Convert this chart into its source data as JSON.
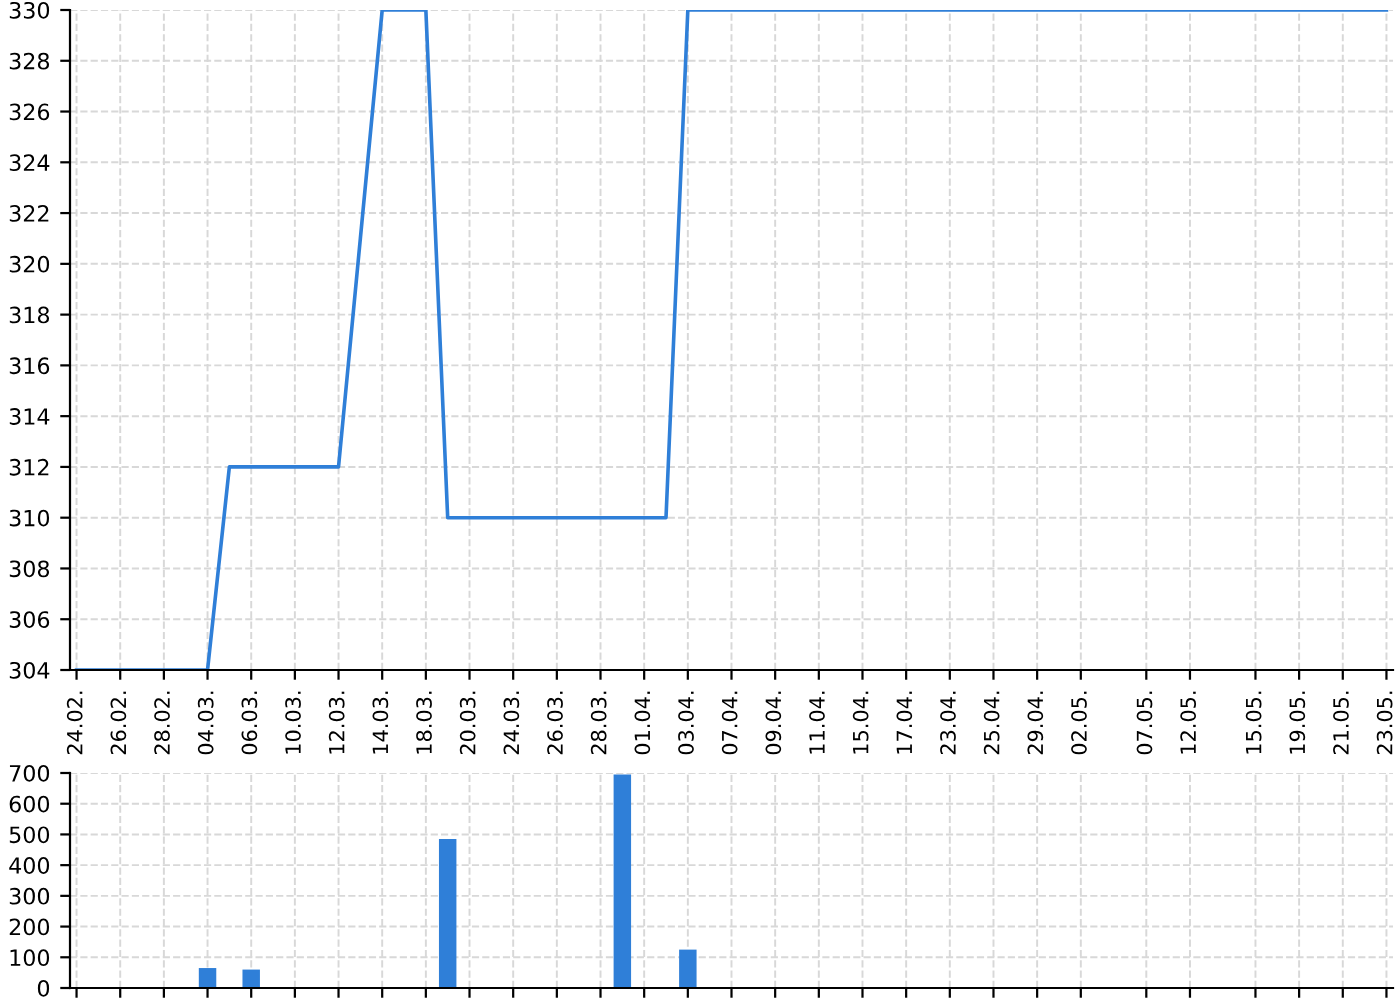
{
  "chart_data": [
    {
      "type": "line",
      "categories": [
        "24.02.",
        null,
        "26.02.",
        null,
        "28.02.",
        null,
        "04.03.",
        null,
        "06.03.",
        null,
        "10.03.",
        null,
        "12.03.",
        null,
        "14.03.",
        null,
        "18.03.",
        null,
        "20.03.",
        null,
        "24.03.",
        null,
        "26.03.",
        null,
        "28.03.",
        null,
        "01.04.",
        null,
        "03.04.",
        null,
        "07.04.",
        null,
        "09.04.",
        null,
        "11.04.",
        null,
        "15.04.",
        null,
        "17.04.",
        null,
        "23.04.",
        null,
        "25.04.",
        null,
        "29.04.",
        null,
        "02.05.",
        null,
        null,
        "07.05.",
        null,
        "12.05.",
        null,
        null,
        "15.05.",
        null,
        "19.05.",
        null,
        "21.05.",
        null,
        "23.05."
      ],
      "series": [
        {
          "color": "#2f7fd8",
          "values": [
            304,
            304,
            304,
            304,
            304,
            304,
            304,
            312,
            312,
            312,
            312,
            312,
            312,
            321,
            330,
            330,
            330,
            310,
            310,
            310,
            310,
            310,
            310,
            310,
            310,
            310,
            310,
            310,
            330,
            330,
            330,
            330,
            330,
            330,
            330,
            330,
            330,
            330,
            330,
            330,
            330,
            330,
            330,
            330,
            330,
            330,
            330,
            330,
            330,
            330,
            330,
            330,
            330,
            330,
            330,
            330,
            330,
            330,
            330,
            330,
            330
          ]
        }
      ],
      "ylim": [
        304,
        330
      ],
      "yticks": [
        304,
        306,
        308,
        310,
        312,
        314,
        316,
        318,
        320,
        322,
        324,
        326,
        328,
        330
      ],
      "grid": true,
      "marker": "none",
      "line_style": "solid"
    },
    {
      "type": "bar",
      "categories": [
        "24.02.",
        null,
        "26.02.",
        null,
        "28.02.",
        null,
        "04.03.",
        null,
        "06.03.",
        null,
        "10.03.",
        null,
        "12.03.",
        null,
        "14.03.",
        null,
        "18.03.",
        null,
        "20.03.",
        null,
        "24.03.",
        null,
        "26.03.",
        null,
        "28.03.",
        null,
        "01.04.",
        null,
        "03.04.",
        null,
        "07.04.",
        null,
        "09.04.",
        null,
        "11.04.",
        null,
        "15.04.",
        null,
        "17.04.",
        null,
        "23.04.",
        null,
        "25.04.",
        null,
        "29.04.",
        null,
        "02.05.",
        null,
        null,
        "07.05.",
        null,
        "12.05.",
        null,
        null,
        "15.05.",
        null,
        "19.05.",
        null,
        "21.05.",
        null,
        "23.05."
      ],
      "series": [
        {
          "color": "#2f7fd8",
          "values": [
            0,
            0,
            0,
            0,
            0,
            0,
            65,
            0,
            60,
            0,
            0,
            0,
            null,
            0,
            0,
            0,
            0,
            485,
            0,
            0,
            0,
            0,
            0,
            0,
            0,
            695,
            0,
            0,
            125,
            0,
            0,
            0,
            0,
            0,
            0,
            0,
            0,
            0,
            0,
            0,
            0,
            0,
            0,
            0,
            0,
            0,
            0,
            0,
            0,
            0,
            0,
            0,
            0,
            0,
            0,
            0,
            0,
            0,
            0,
            0,
            0
          ]
        }
      ],
      "ylim": [
        0,
        700
      ],
      "yticks": [
        0,
        100,
        200,
        300,
        400,
        500,
        600,
        700
      ],
      "grid": true,
      "tick_labels": "y"
    }
  ]
}
